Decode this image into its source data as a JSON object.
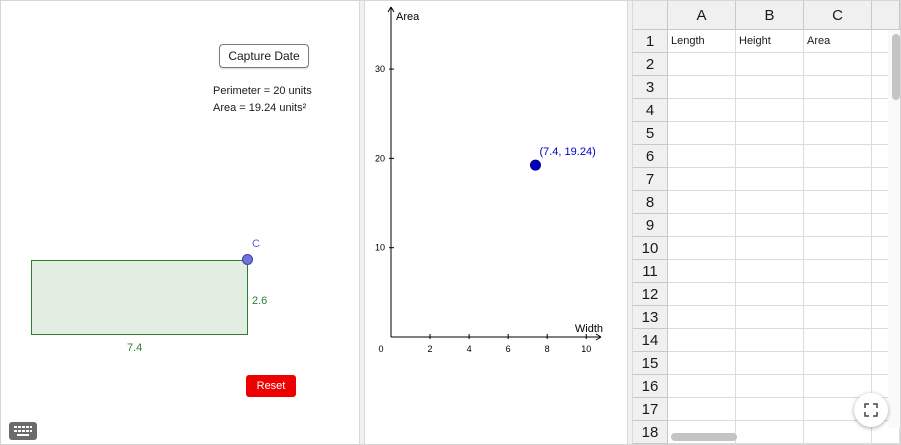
{
  "graphics1": {
    "capture_button": "Capture Date",
    "perimeter_text": "Perimeter = 20 units",
    "area_text": "Area = 19.24 units²",
    "point_label": "C",
    "height_label": "2.6",
    "width_label": "7.4",
    "reset_button": "Reset",
    "keyboard_icon": "keyboard-icon"
  },
  "graphics2": {
    "y_axis_label": "Area",
    "x_axis_label": "Width",
    "point_label": "(7.4, 19.24)"
  },
  "chart_data": {
    "type": "scatter",
    "xlabel": "Width",
    "ylabel": "Area",
    "xlim": [
      0,
      10.5
    ],
    "ylim": [
      0,
      36.5
    ],
    "x_ticks": [
      0,
      2,
      4,
      6,
      8,
      10
    ],
    "y_ticks": [
      10,
      20,
      30
    ],
    "points": [
      {
        "x": 7.4,
        "y": 19.24,
        "label": "(7.4, 19.24)"
      }
    ],
    "point_color": "#0000cc"
  },
  "spreadsheet": {
    "columns": [
      "A",
      "B",
      "C"
    ],
    "rows": [
      "1",
      "2",
      "3",
      "4",
      "5",
      "6",
      "7",
      "8",
      "9",
      "10",
      "11",
      "12",
      "13",
      "14",
      "15",
      "16",
      "17",
      "18"
    ],
    "cells": [
      [
        "Length",
        "Height",
        "Area"
      ]
    ],
    "fullscreen_icon": "fullscreen-icon"
  }
}
